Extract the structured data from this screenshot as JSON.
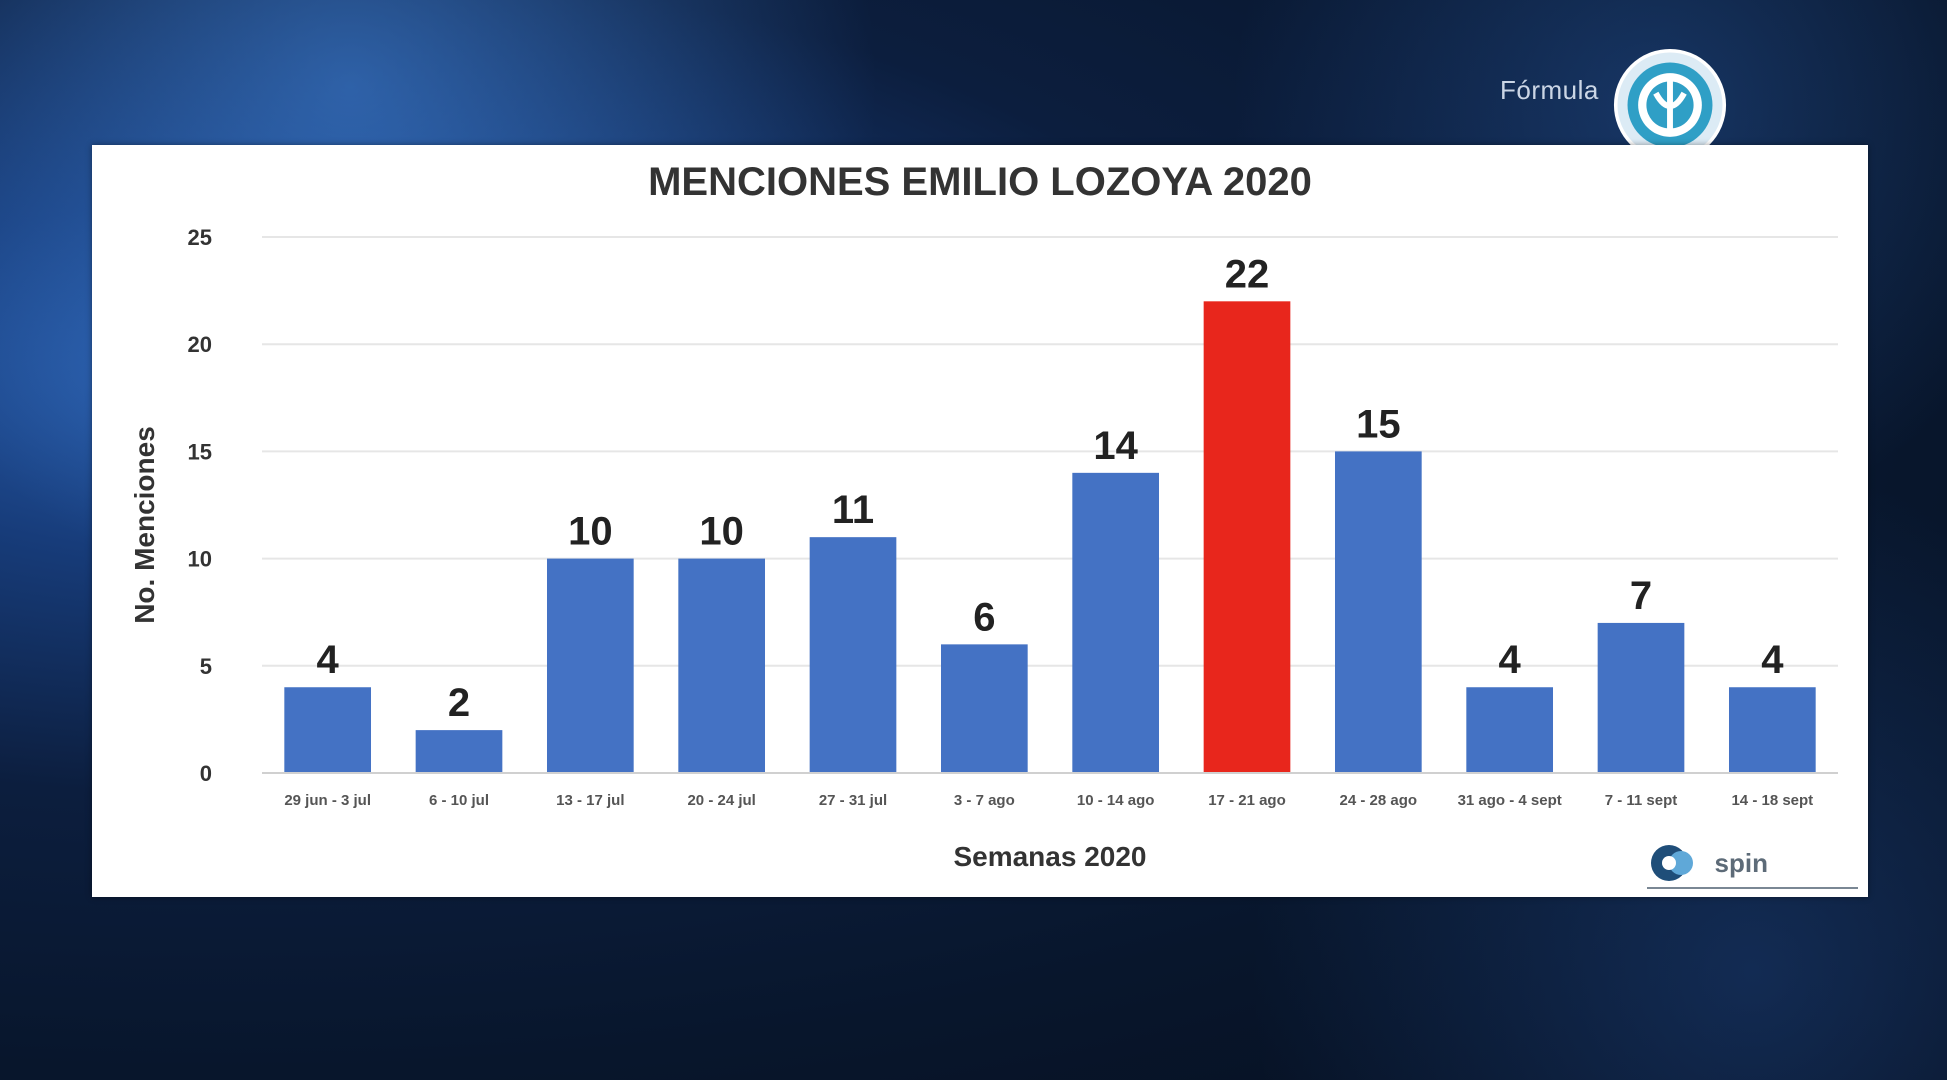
{
  "broadcaster": {
    "name": "Fórmula",
    "logo_icon": "radio-formula-logo-icon"
  },
  "source": {
    "name": "spin",
    "logo_icon": "spin-logo-icon"
  },
  "chart_data": {
    "type": "bar",
    "title": "MENCIONES EMILIO LOZOYA 2020",
    "xlabel": "Semanas 2020",
    "ylabel": "No. Menciones",
    "ylim": [
      0,
      25
    ],
    "yticks": [
      0,
      5,
      10,
      15,
      20,
      25
    ],
    "grid": true,
    "categories": [
      "29 jun - 3 jul",
      "6 - 10 jul",
      "13 - 17 jul",
      "20 - 24 jul",
      "27 - 31 jul",
      "3 - 7 ago",
      "10 - 14 ago",
      "17 - 21 ago",
      "24 - 28 ago",
      "31 ago - 4 sept",
      "7 - 11 sept",
      "14 - 18 sept"
    ],
    "values": [
      4,
      2,
      10,
      10,
      11,
      6,
      14,
      22,
      15,
      4,
      7,
      4
    ],
    "colors": {
      "default": "#4472c4",
      "highlight": "#e8261c"
    },
    "highlight_index": 7
  }
}
